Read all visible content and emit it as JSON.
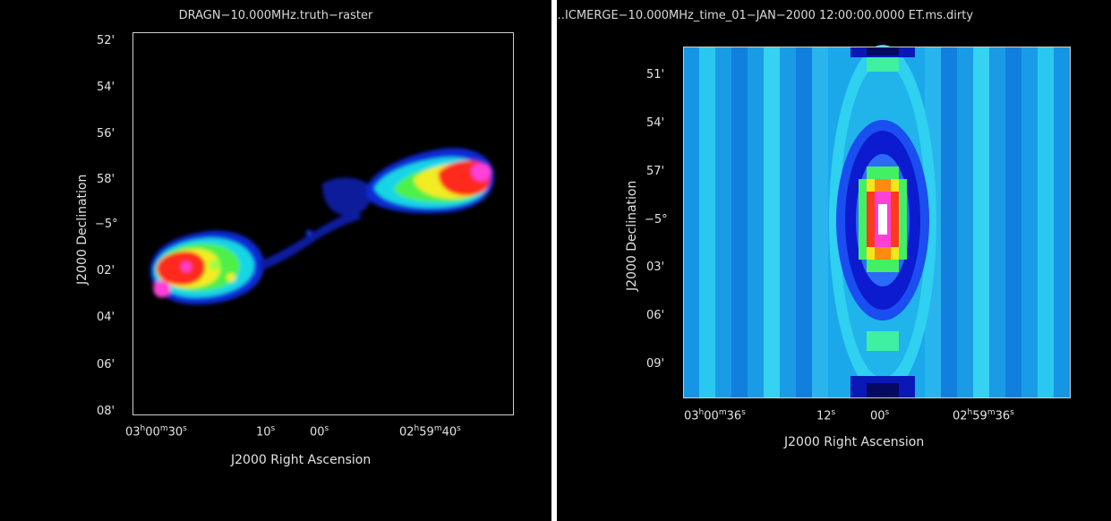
{
  "left": {
    "title": "DRAGN−10.000MHz.truth−raster",
    "ylabel": "J2000 Declination",
    "xlabel": "J2000 Right Ascension",
    "yticks": [
      "52'",
      "54'",
      "56'",
      "58'",
      "−5°",
      "02'",
      "04'",
      "06'",
      "08'"
    ],
    "xticks": [
      {
        "h": "03",
        "m": "00",
        "s": "30"
      },
      {
        "s": "10"
      },
      {
        "s": "00"
      },
      {
        "h": "02",
        "m": "59",
        "s": "40"
      }
    ]
  },
  "right": {
    "title": "…ICMERGE−10.000MHz_time_01−JAN−2000 12:00:00.0000 ET.ms.dirty",
    "ylabel": "J2000 Declination",
    "xlabel": "J2000 Right Ascension",
    "yticks": [
      "51'",
      "54'",
      "57'",
      "−5°",
      "03'",
      "06'",
      "09'"
    ],
    "xticks": [
      {
        "h": "03",
        "m": "00",
        "s": "36"
      },
      {
        "s": "12"
      },
      {
        "s": "00"
      },
      {
        "h": "02",
        "m": "59",
        "s": "36"
      }
    ]
  },
  "colors": {
    "background": "#000000",
    "frame": "#cfcfcf"
  }
}
